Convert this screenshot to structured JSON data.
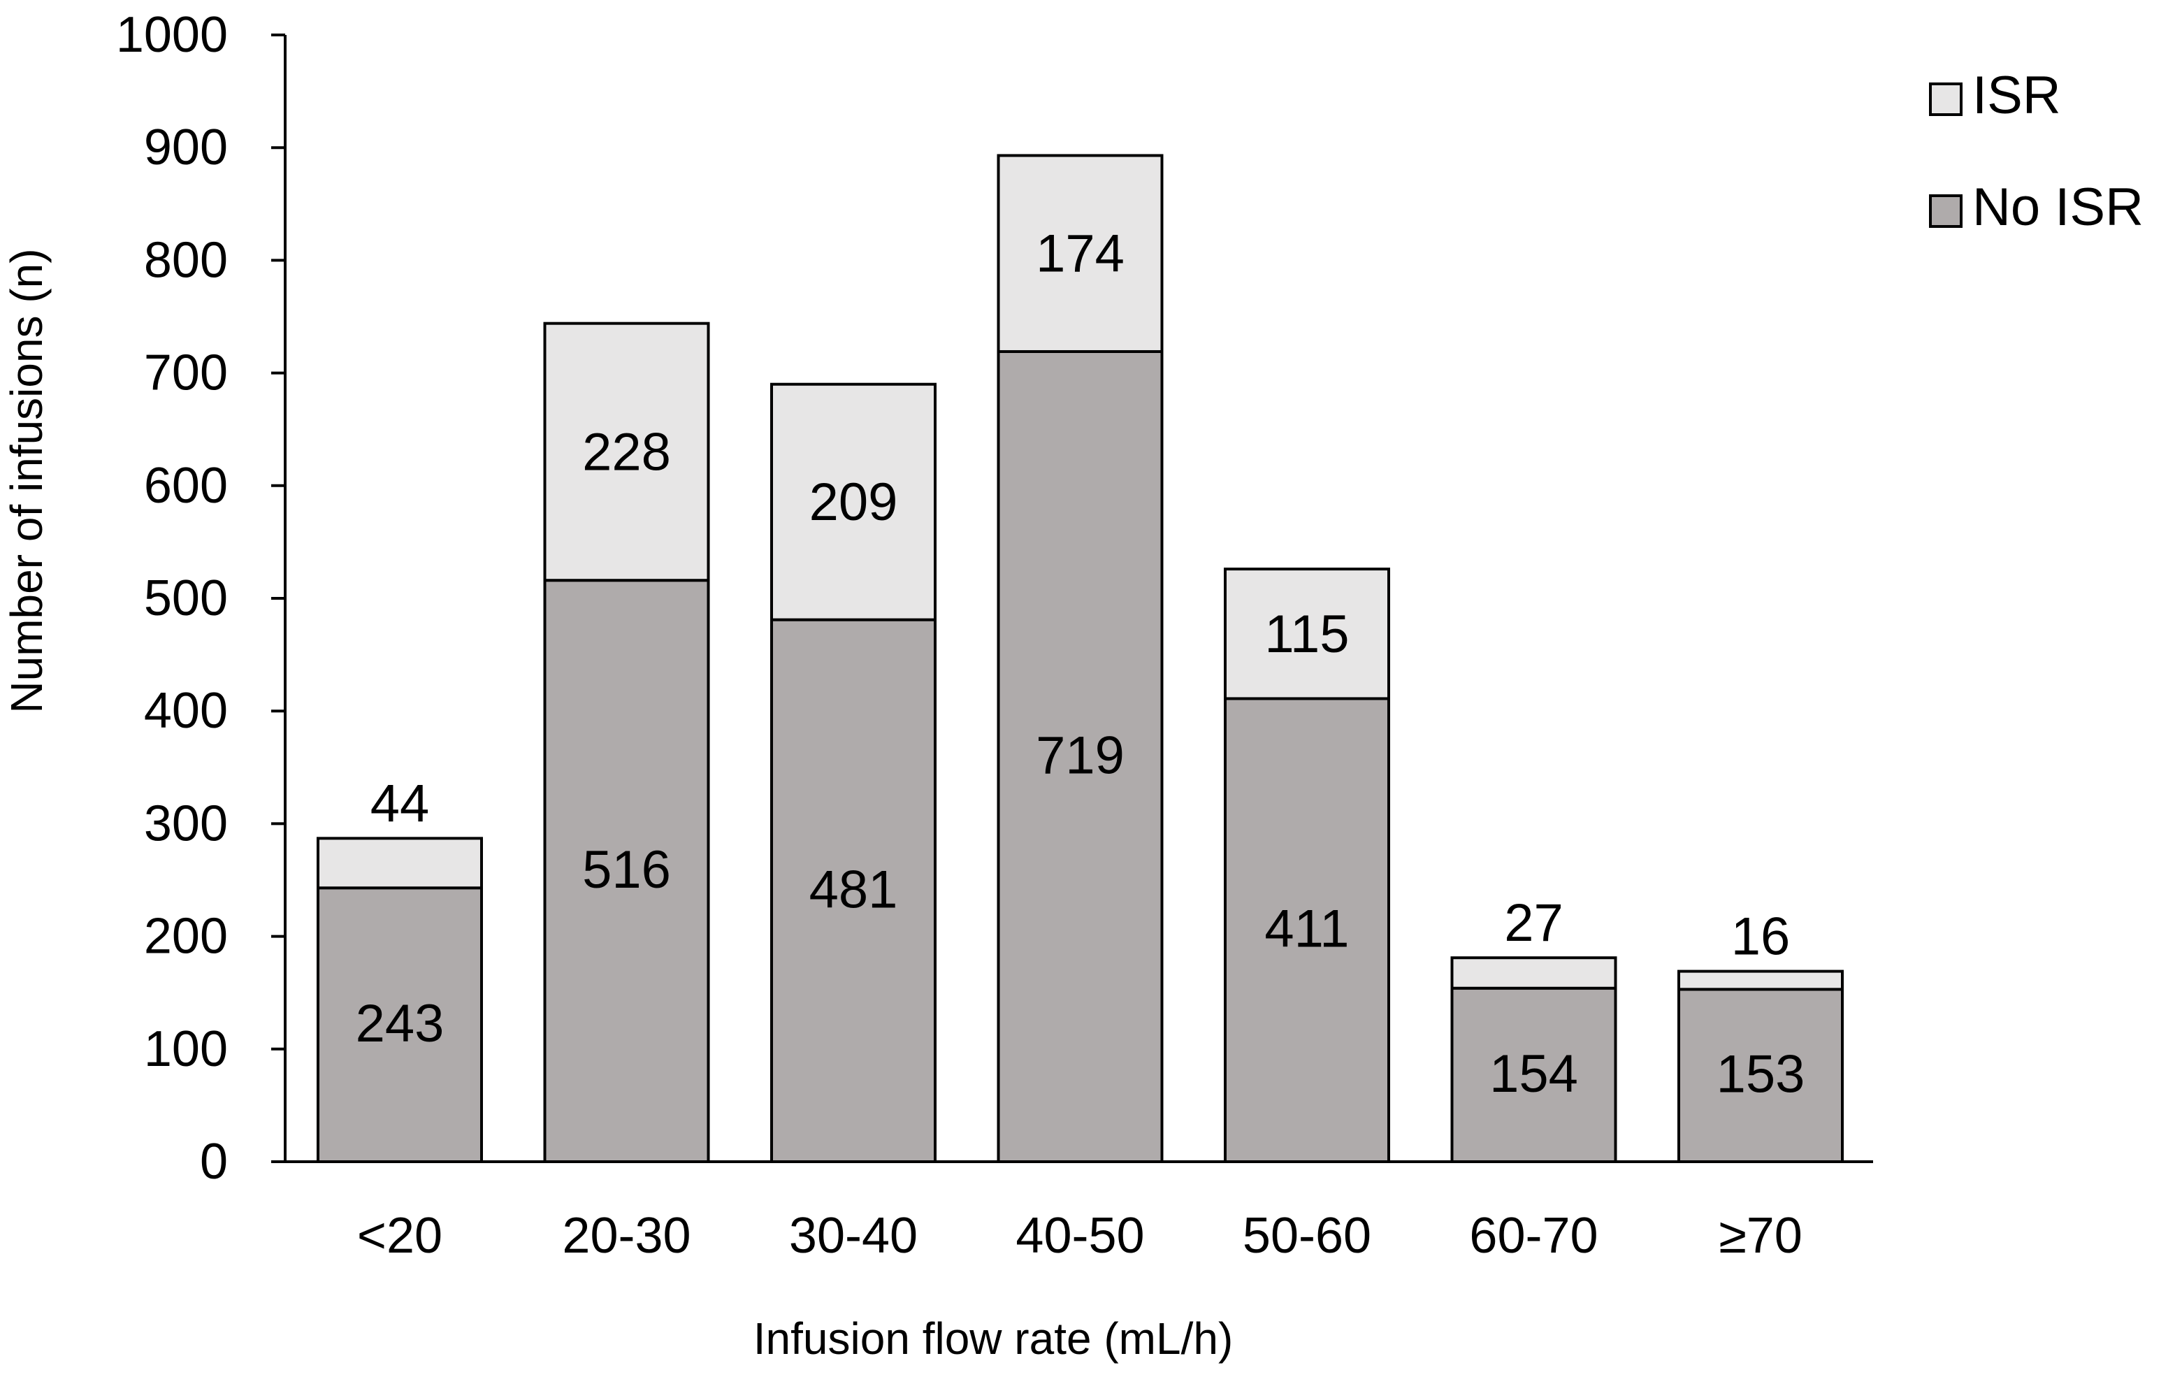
{
  "chart_data": {
    "type": "bar",
    "stacked": true,
    "title": "",
    "xlabel": "Infusion flow rate (mL/h)",
    "ylabel": "Number of infusions (n)",
    "categories": [
      "<20",
      "20-30",
      "30-40",
      "40-50",
      "50-60",
      "60-70",
      "≥70"
    ],
    "ylim": [
      0,
      1000
    ],
    "yticks": [
      0,
      100,
      200,
      300,
      400,
      500,
      600,
      700,
      800,
      900,
      1000
    ],
    "ytick_labels": [
      "0",
      "100",
      "200",
      "300",
      "400",
      "500",
      "600",
      "700",
      "800",
      "900",
      "1000"
    ],
    "grid": false,
    "legend_position": "top-right",
    "series": [
      {
        "name": "No ISR",
        "color": "#afabab",
        "values": [
          243,
          516,
          481,
          719,
          411,
          154,
          153
        ],
        "labels": [
          "243",
          "516",
          "481",
          "719",
          "411",
          "154",
          "153"
        ]
      },
      {
        "name": "ISR",
        "color": "#e7e6e6",
        "values": [
          44,
          228,
          209,
          174,
          115,
          27,
          16
        ],
        "labels": [
          "44",
          "228",
          "209",
          "174",
          "115",
          "27",
          "16"
        ]
      }
    ],
    "legend": [
      {
        "name": "ISR",
        "color": "#e7e6e6"
      },
      {
        "name": "No ISR",
        "color": "#afabab"
      }
    ],
    "outline_color": "#000000"
  }
}
